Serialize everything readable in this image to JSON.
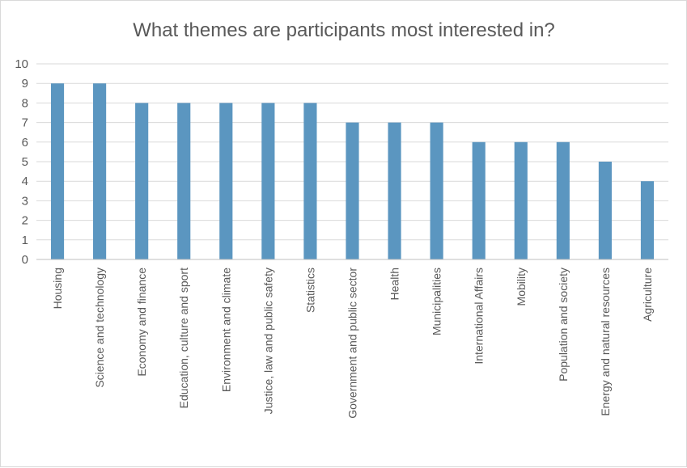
{
  "chart_data": {
    "type": "bar",
    "title": "What themes are participants most interested in?",
    "categories": [
      "Housing",
      "Science and technology",
      "Economy and finance",
      "Education, culture and sport",
      "Environment and climate",
      "Justice, law and public safety",
      "Statistics",
      "Government and public sector",
      "Health",
      "Municipalities",
      "International Affairs",
      "Mobility",
      "Population and society",
      "Energy and natural resources",
      "Agriculture"
    ],
    "values": [
      9,
      9,
      8,
      8,
      8,
      8,
      8,
      7,
      7,
      7,
      6,
      6,
      6,
      5,
      4
    ],
    "ylim": [
      0,
      10
    ],
    "yticks": [
      0,
      1,
      2,
      3,
      4,
      5,
      6,
      7,
      8,
      9,
      10
    ],
    "grid": true,
    "legend": "none",
    "bar_color": "#5b96c0"
  }
}
